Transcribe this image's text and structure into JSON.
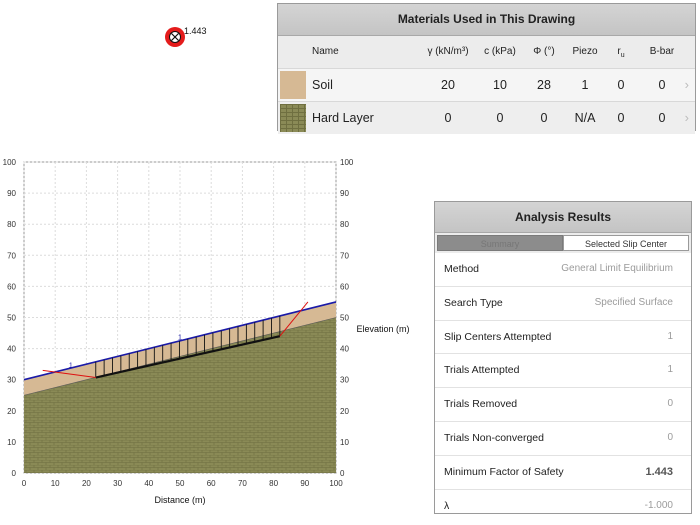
{
  "slip_center": {
    "label": "1.443",
    "icon": "slip-center-icon"
  },
  "materials": {
    "title": "Materials Used in This Drawing",
    "headers": {
      "name": "Name",
      "gamma": "γ (kN/m³)",
      "c": "c (kPa)",
      "phi": "Φ (°)",
      "piezo": "Piezo",
      "ru": "r",
      "ru_sub": "u",
      "bbar": "B-bar"
    },
    "rows": [
      {
        "name": "Soil",
        "gamma": "20",
        "c": "10",
        "phi": "28",
        "piezo": "1",
        "ru": "0",
        "bbar": "0",
        "color": "#d6b994"
      },
      {
        "name": "Hard Layer",
        "gamma": "0",
        "c": "0",
        "phi": "0",
        "piezo": "N/A",
        "ru": "0",
        "bbar": "0",
        "color": "#8a8a56"
      }
    ]
  },
  "chart_data": {
    "type": "area",
    "xlabel": "Distance (m)",
    "ylabel_right": "Elevation (m)",
    "xlim": [
      0,
      100
    ],
    "ylim": [
      0,
      100
    ],
    "xticks": [
      0,
      10,
      20,
      30,
      40,
      50,
      60,
      70,
      80,
      90,
      100
    ],
    "yticks": [
      0,
      10,
      20,
      30,
      40,
      50,
      60,
      70,
      80,
      90,
      100
    ],
    "grid": true,
    "series": [
      {
        "values": [
          [
            0,
            30
          ],
          [
            100,
            55
          ]
        ],
        "color": "#1a1aa8"
      },
      {
        "values": [
          [
            0,
            25
          ],
          [
            100,
            50
          ]
        ],
        "color": "#8a8a56"
      },
      {
        "values": [
          [
            23,
            30.7
          ],
          [
            82,
            44
          ]
        ],
        "color": "#111111"
      }
    ],
    "annotations": [
      {
        "text": "1",
        "x": 15,
        "y": 34
      },
      {
        "text": "1",
        "x": 50,
        "y": 43
      }
    ]
  },
  "analysis": {
    "title": "Analysis Results",
    "tabs": {
      "summary": "Summary",
      "slip": "Selected Slip Center"
    },
    "rows": [
      {
        "label": "Method",
        "value": "General Limit Equilibrium",
        "strong": false
      },
      {
        "label": "Search Type",
        "value": "Specified Surface",
        "strong": false
      },
      {
        "label": "Slip Centers Attempted",
        "value": "1",
        "strong": false
      },
      {
        "label": "Trials Attempted",
        "value": "1",
        "strong": false
      },
      {
        "label": "Trials Removed",
        "value": "0",
        "strong": false
      },
      {
        "label": "Trials Non-converged",
        "value": "0",
        "strong": false
      },
      {
        "label": "Minimum Factor of Safety",
        "value": "1.443",
        "strong": true
      },
      {
        "label": "λ",
        "value": "-1.000",
        "strong": false
      }
    ]
  }
}
